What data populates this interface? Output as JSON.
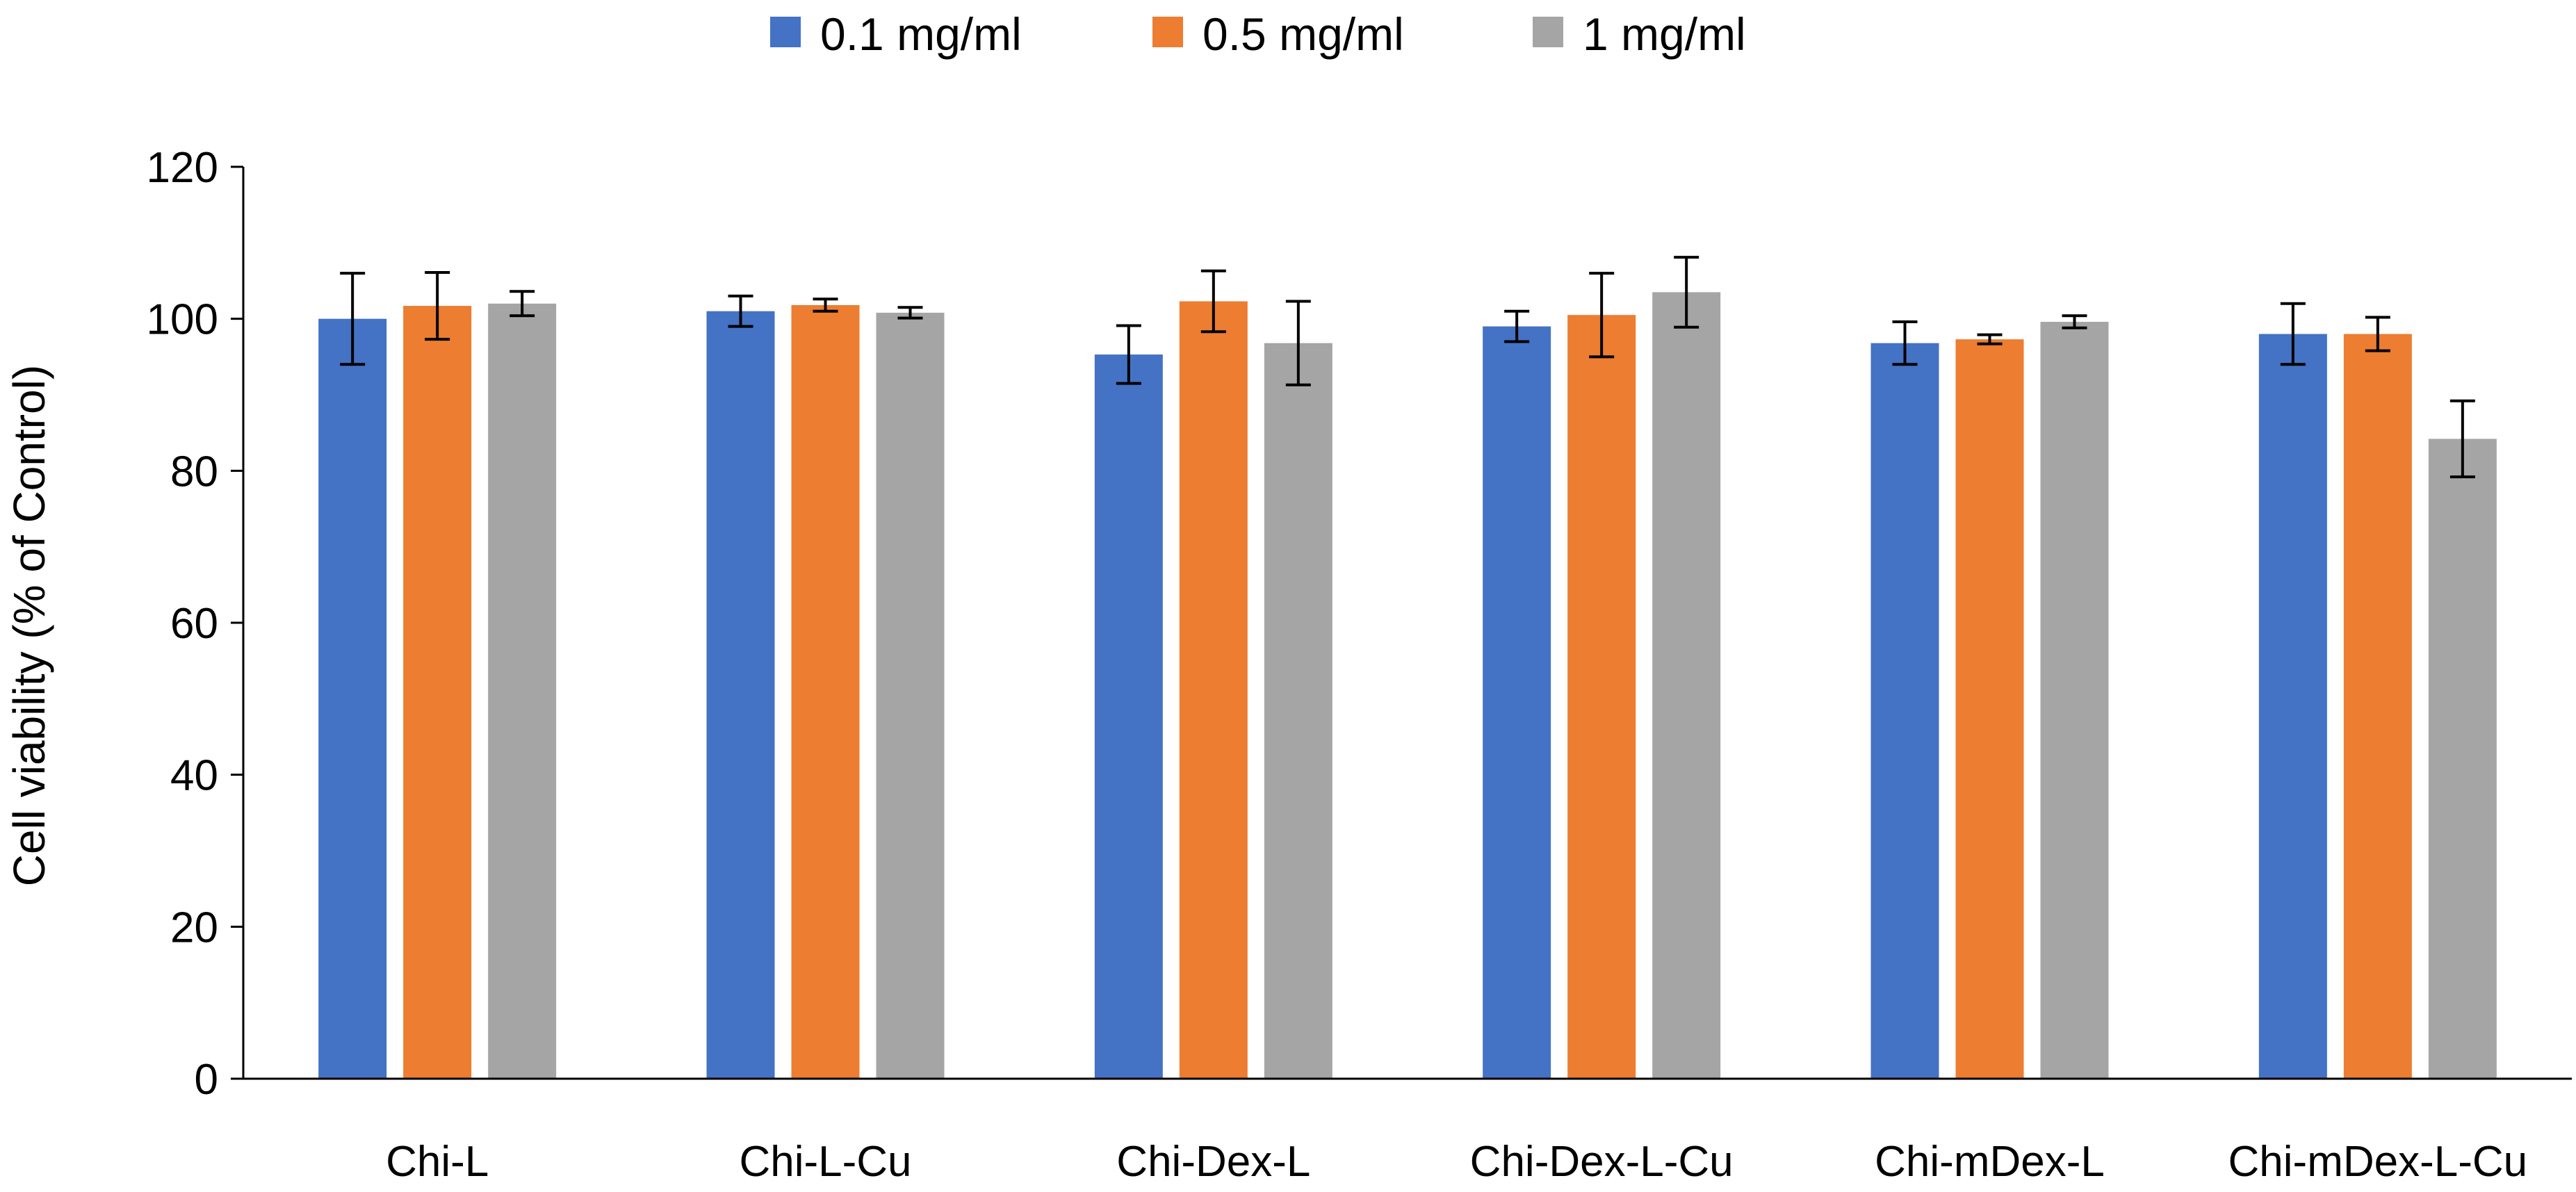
{
  "chart_data": {
    "type": "bar",
    "title": "",
    "xlabel": "",
    "ylabel": "Cell viability (% of Control)",
    "ylim": [
      0,
      120
    ],
    "yticks": [
      "0",
      "20",
      "40",
      "60",
      "80",
      "100",
      "120"
    ],
    "grid": false,
    "legend_position": "top-center",
    "categories": [
      "Chi-L",
      "Chi-L-Cu",
      "Chi-Dex-L",
      "Chi-Dex-L-Cu",
      "Chi-mDex-L",
      "Chi-mDex-L-Cu"
    ],
    "series": [
      {
        "name": "0.1 mg/ml",
        "color": "#4472C4",
        "values": [
          100,
          101,
          95.3,
          99,
          96.8,
          98
        ],
        "errors": [
          6,
          2,
          3.8,
          2,
          2.8,
          4
        ]
      },
      {
        "name": "0.5 mg/ml",
        "color": "#ED7D31",
        "values": [
          101.7,
          101.8,
          102.3,
          100.5,
          97.3,
          98
        ],
        "errors": [
          4.4,
          0.8,
          4,
          5.5,
          0.6,
          2.2
        ]
      },
      {
        "name": "1 mg/ml",
        "color": "#A5A5A5",
        "values": [
          102,
          100.8,
          96.8,
          103.5,
          99.6,
          84.2
        ],
        "errors": [
          1.6,
          0.7,
          5.5,
          4.6,
          0.8,
          5
        ]
      }
    ]
  }
}
